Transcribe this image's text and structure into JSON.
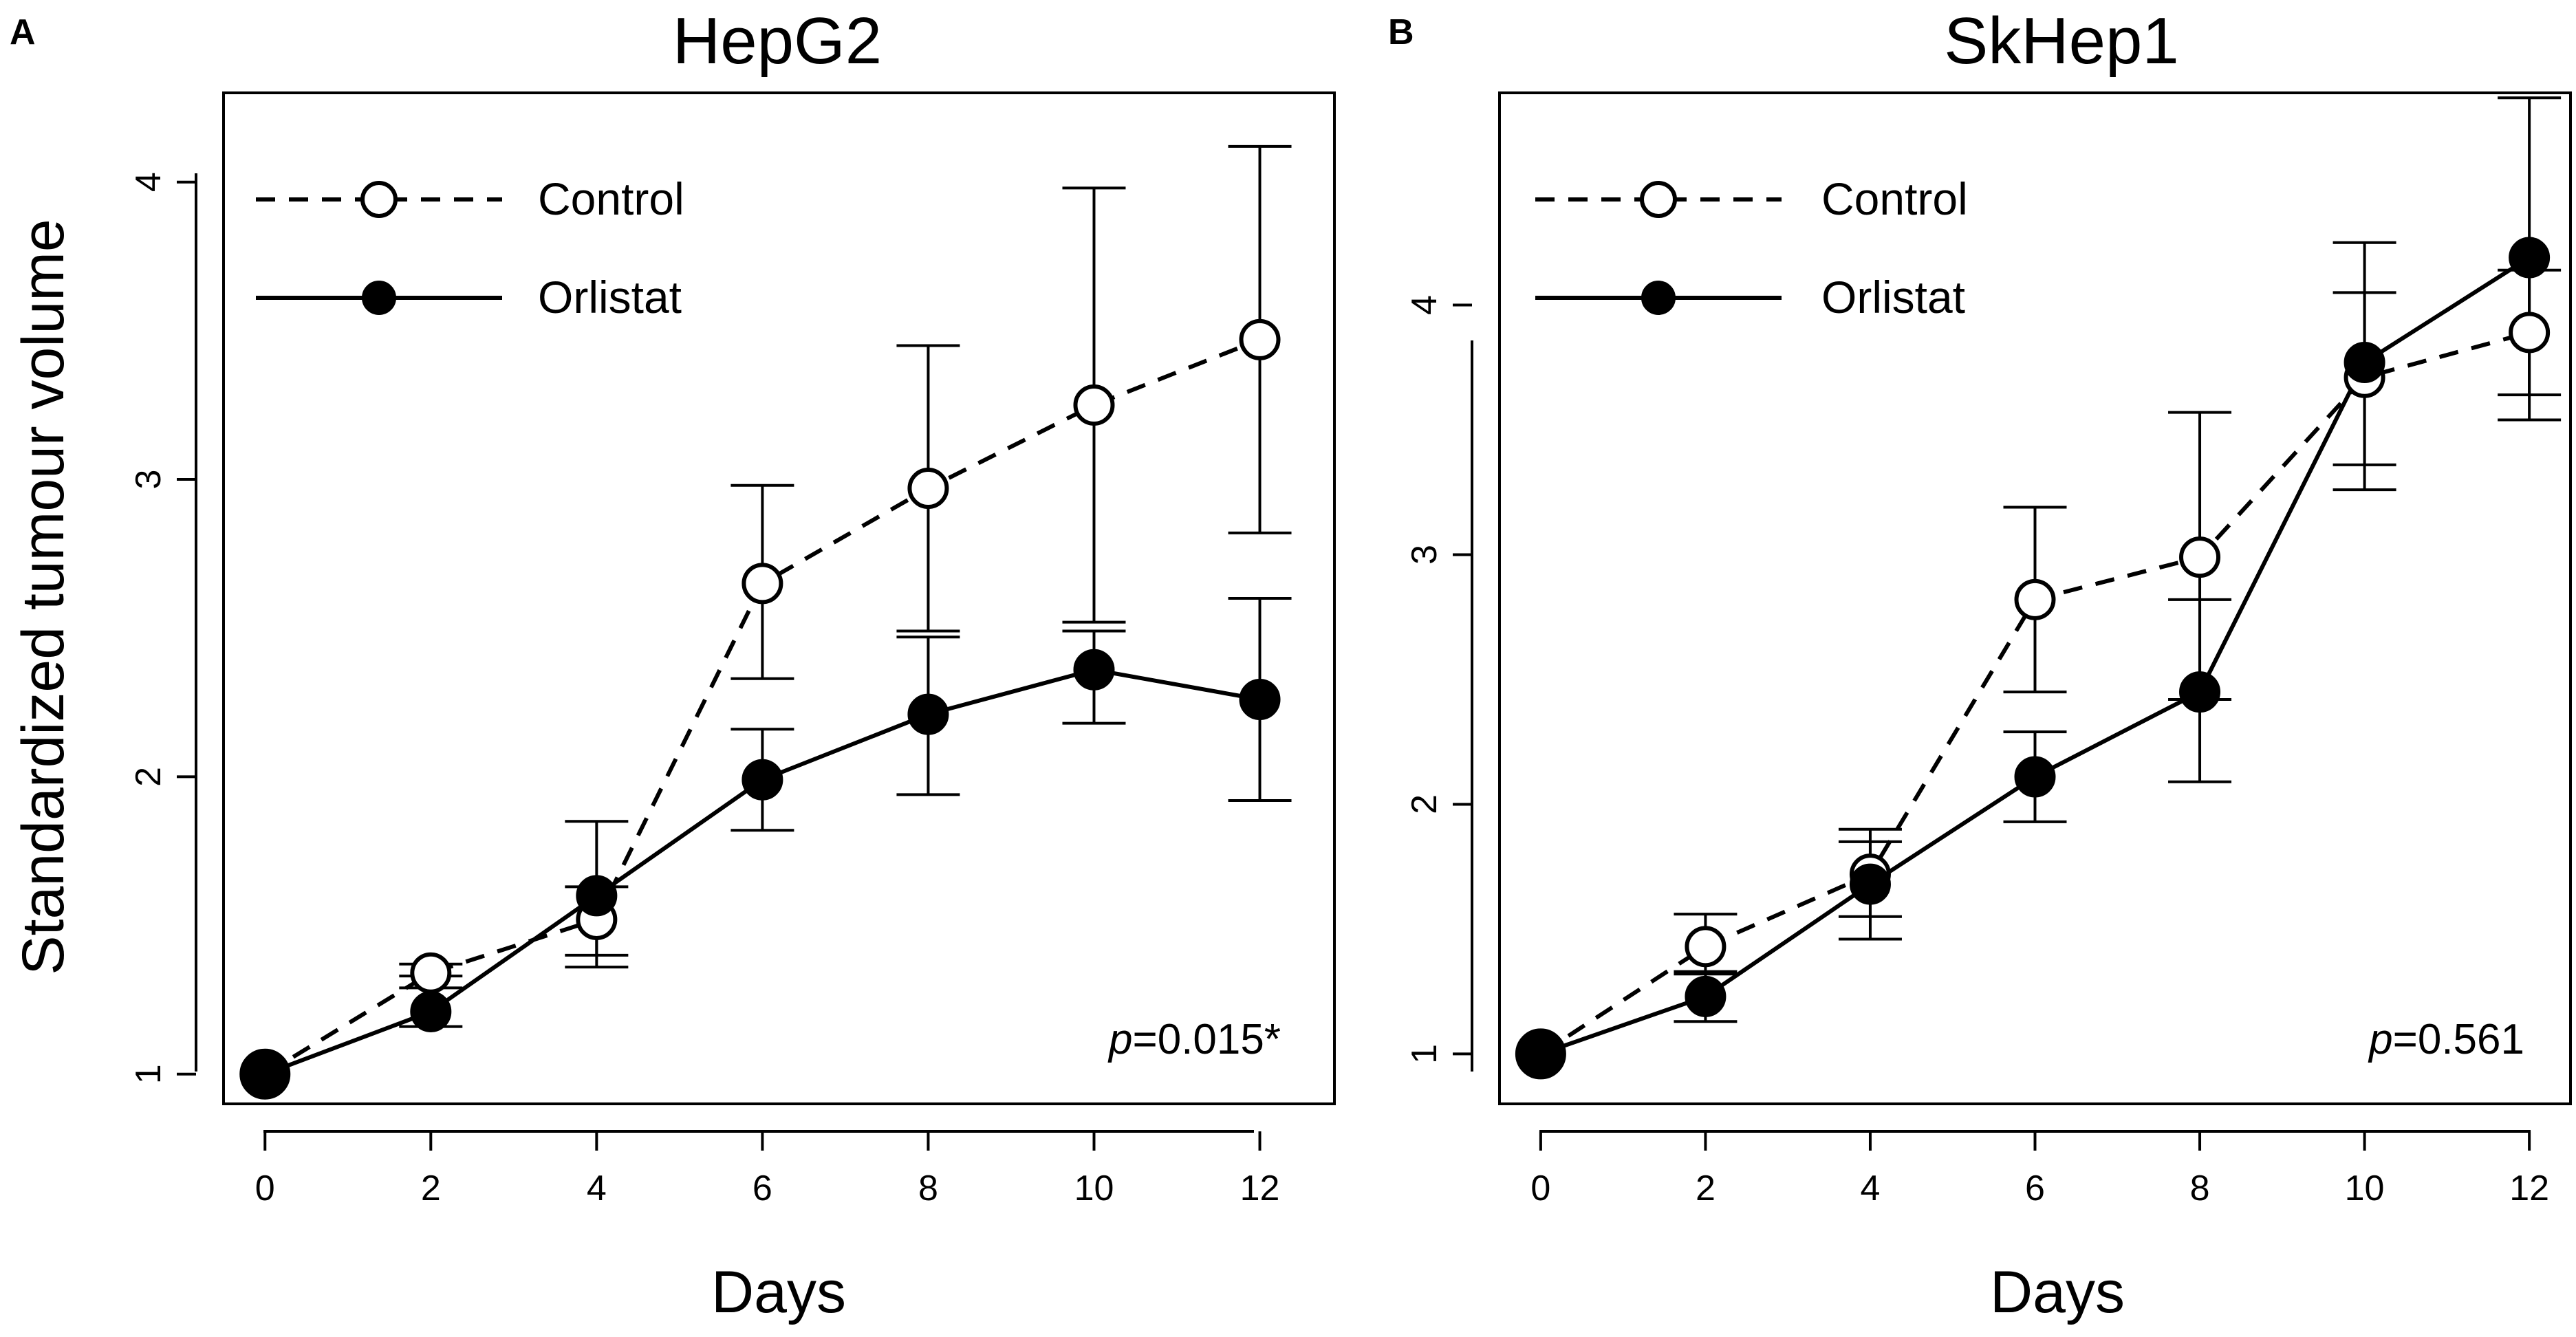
{
  "chart_data": [
    {
      "type": "line",
      "panel_label": "A",
      "title": "HepG2",
      "xlabel": "Days",
      "ylabel": "Standardized tumour volume",
      "x": [
        0,
        2,
        4,
        6,
        8,
        10,
        12
      ],
      "xlim": [
        -0.5,
        12.9
      ],
      "ylim": [
        0.9,
        4.3
      ],
      "xticks": [
        0,
        2,
        4,
        6,
        8,
        10,
        12
      ],
      "yticks": [
        1,
        2,
        3,
        4
      ],
      "annotation": {
        "italic": "p",
        "text": "=0.015*"
      },
      "legend_position": "top-left",
      "series": [
        {
          "name": "Control",
          "style": "dashed-open-circle",
          "values": [
            1.0,
            1.34,
            1.52,
            2.65,
            2.97,
            3.25,
            3.47
          ],
          "err_low": [
            1.0,
            1.29,
            1.4,
            2.33,
            2.49,
            2.52,
            2.82
          ],
          "err_high": [
            1.0,
            1.37,
            1.63,
            2.98,
            3.45,
            3.98,
            4.12
          ]
        },
        {
          "name": "Orlistat",
          "style": "solid-filled-circle",
          "values": [
            1.0,
            1.21,
            1.6,
            1.99,
            2.21,
            2.36,
            2.26
          ],
          "err_low": [
            1.0,
            1.16,
            1.36,
            1.82,
            1.94,
            2.18,
            1.92
          ],
          "err_high": [
            1.0,
            1.33,
            1.85,
            2.16,
            2.47,
            2.49,
            2.6
          ]
        }
      ]
    },
    {
      "type": "line",
      "panel_label": "B",
      "title": "SkHep1",
      "xlabel": "Days",
      "ylabel": "",
      "x": [
        0,
        2,
        4,
        6,
        8,
        10,
        12
      ],
      "xlim": [
        -0.5,
        12.5
      ],
      "ylim": [
        0.8,
        4.85
      ],
      "xticks": [
        0,
        2,
        4,
        6,
        8,
        10,
        12
      ],
      "yticks": [
        1,
        2,
        3,
        4
      ],
      "annotation": {
        "italic": "p",
        "text": "=0.561"
      },
      "legend_position": "top-left",
      "series": [
        {
          "name": "Control",
          "style": "dashed-open-circle",
          "values": [
            1.0,
            1.43,
            1.72,
            2.82,
            2.99,
            3.71,
            3.89
          ],
          "err_low": [
            1.0,
            1.32,
            1.55,
            2.45,
            2.42,
            3.36,
            3.64
          ],
          "err_high": [
            1.0,
            1.56,
            1.9,
            3.19,
            3.57,
            4.05,
            4.14
          ]
        },
        {
          "name": "Orlistat",
          "style": "solid-filled-circle",
          "values": [
            1.0,
            1.23,
            1.68,
            2.11,
            2.45,
            3.77,
            4.19
          ],
          "err_low": [
            1.0,
            1.13,
            1.46,
            1.93,
            2.09,
            3.26,
            3.54
          ],
          "err_high": [
            1.0,
            1.33,
            1.85,
            2.29,
            2.82,
            4.25,
            4.83
          ]
        }
      ]
    }
  ]
}
